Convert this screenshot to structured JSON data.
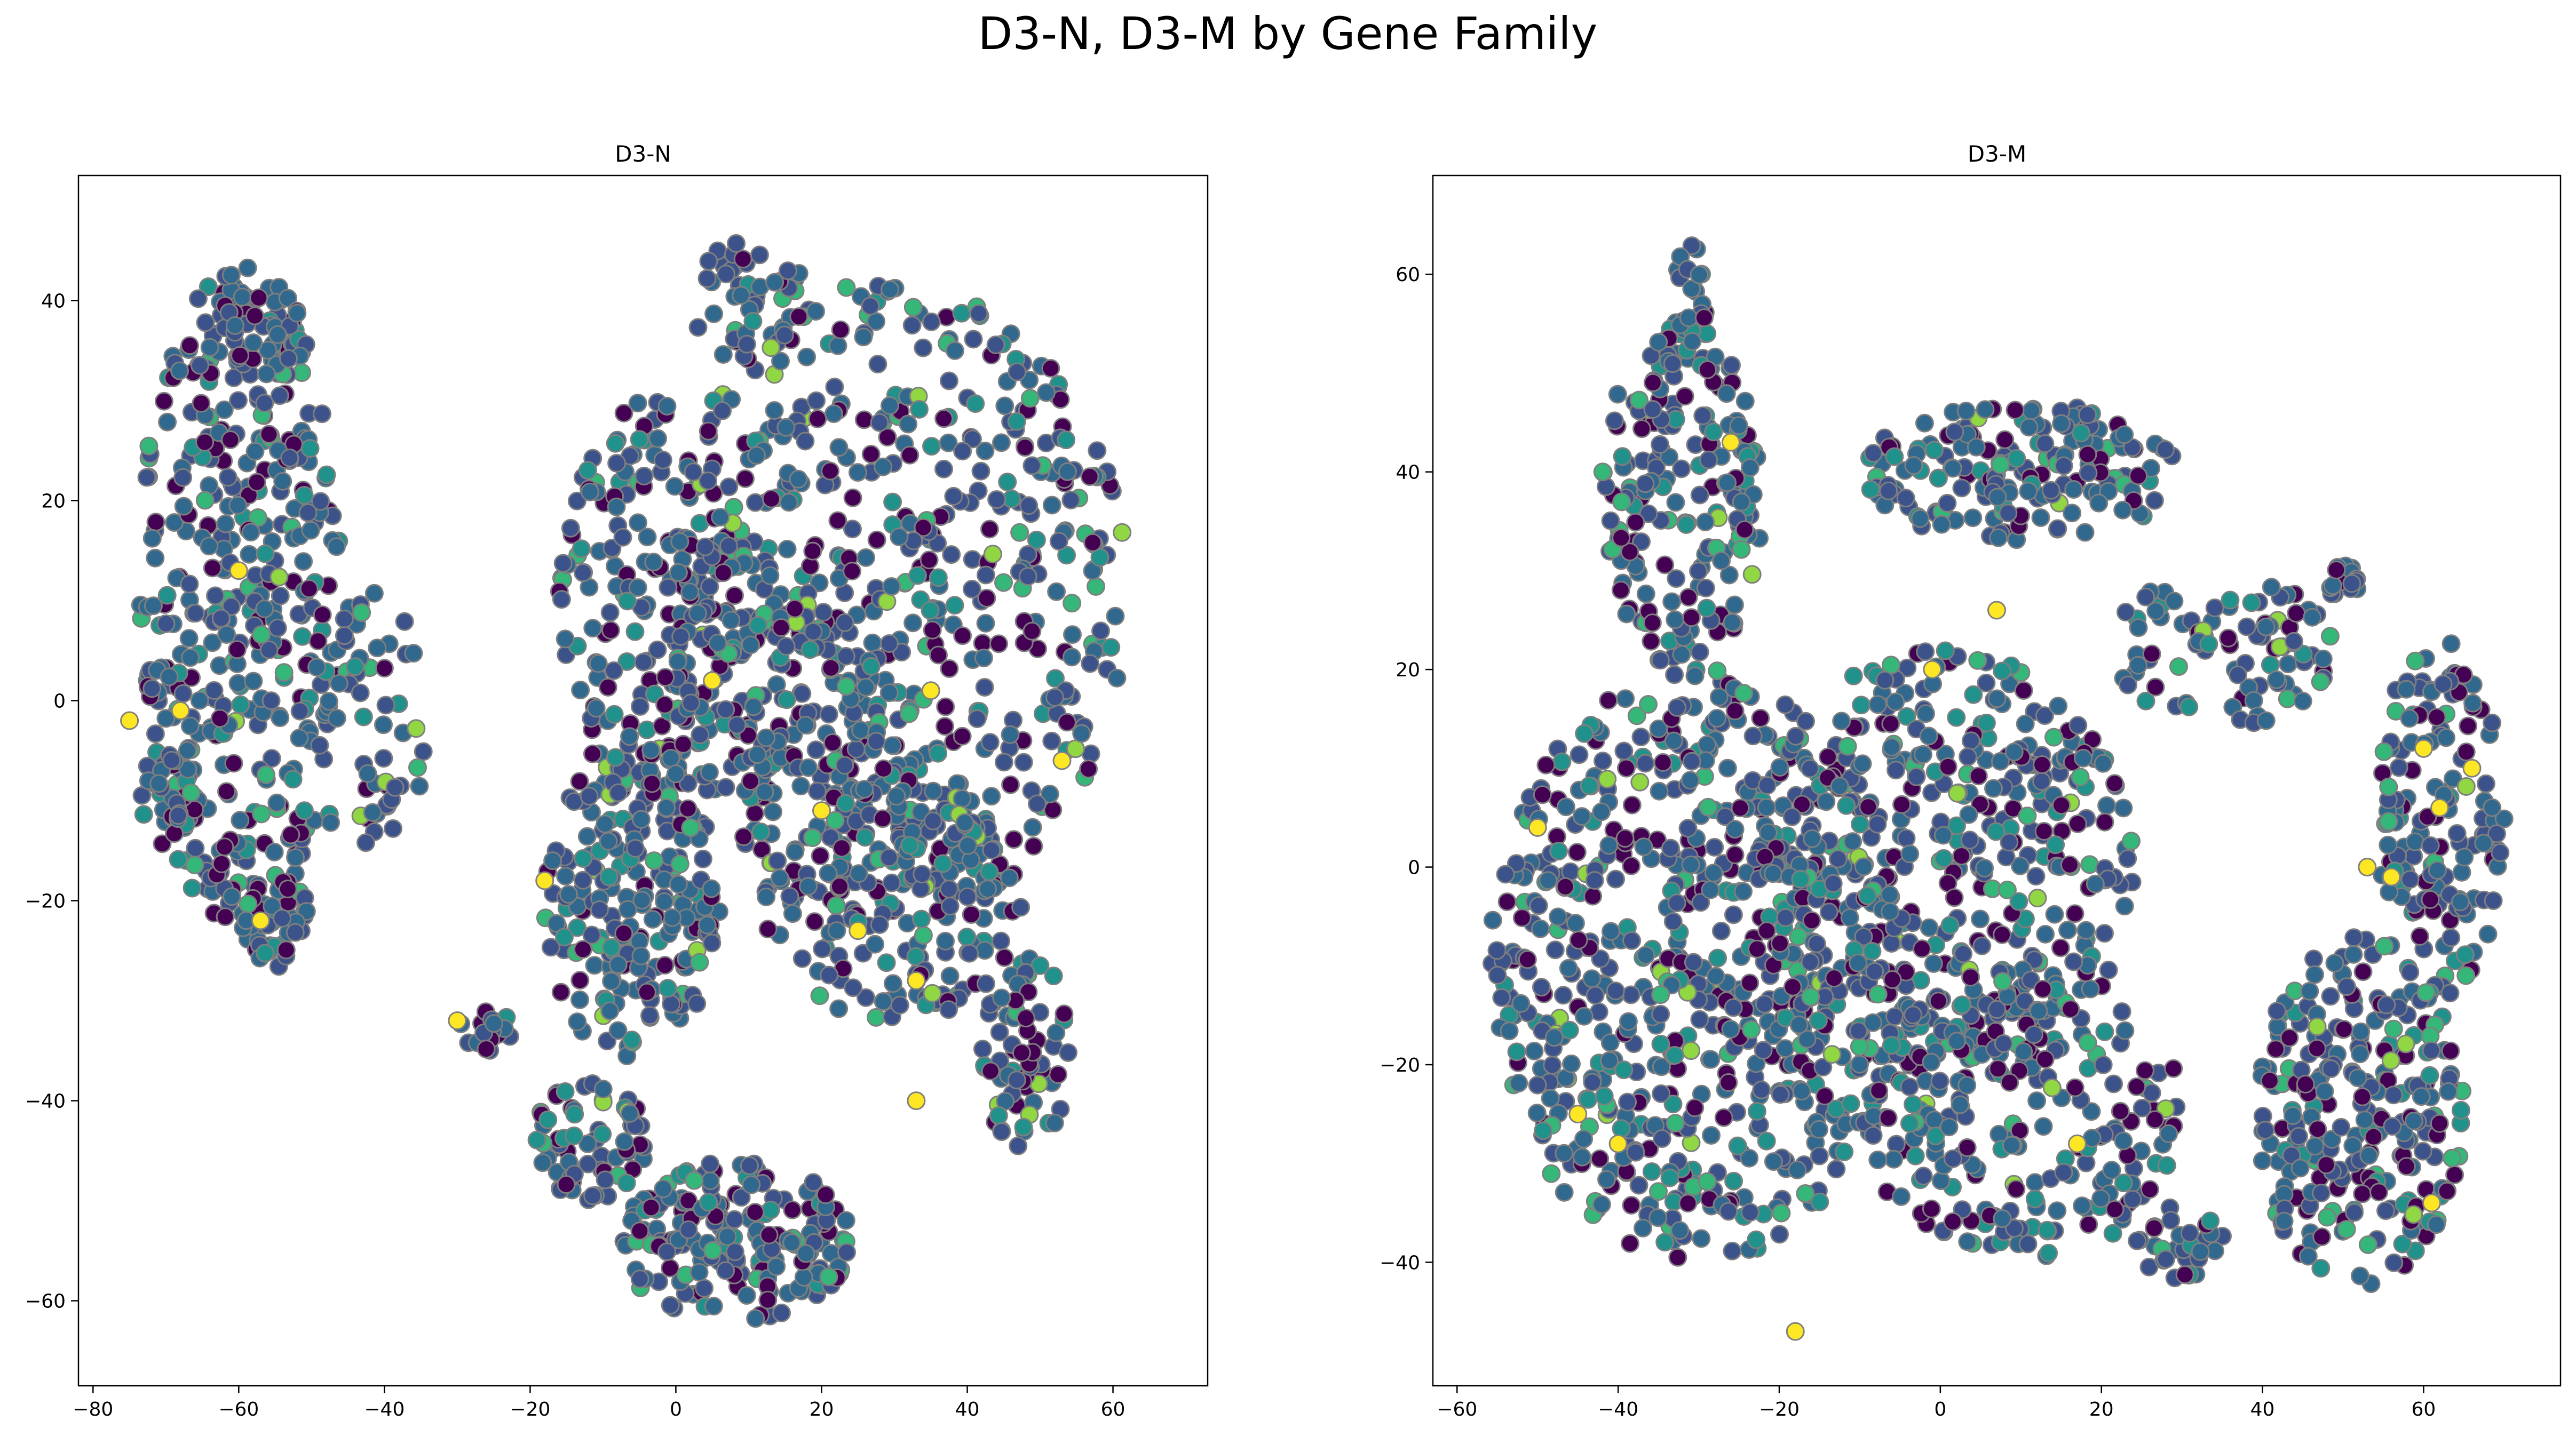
{
  "chart_data": {
    "suptitle": "D3-N, D3-M by Gene Family",
    "type": "scatter",
    "colormap": "viridis",
    "marker_edge_color": "#7f7f7f",
    "palette": [
      "#440154",
      "#3b528b",
      "#31688e",
      "#21918c",
      "#35b779",
      "#90d743",
      "#fde725"
    ],
    "panels": [
      {
        "title": "D3-N",
        "xlim": [
          -82,
          73
        ],
        "ylim": [
          -68.5,
          52.5
        ],
        "xticks": [
          -80,
          -60,
          -40,
          -20,
          0,
          20,
          40,
          60
        ],
        "xtick_labels": [
          "−80",
          "−60",
          "−40",
          "−20",
          "0",
          "20",
          "40",
          "60"
        ],
        "yticks": [
          -60,
          -40,
          -20,
          0,
          20,
          40
        ],
        "ytick_labels": [
          "−60",
          "−40",
          "−20",
          "0",
          "20",
          "40"
        ],
        "seed": 17,
        "clusters": [
          {
            "cx": -60,
            "cy": 10,
            "rx": 14,
            "ry": 33,
            "n": 430
          },
          {
            "cx": -56,
            "cy": 38,
            "rx": 6,
            "ry": 6,
            "n": 40
          },
          {
            "cx": -55,
            "cy": -22,
            "rx": 5,
            "ry": 5,
            "n": 45
          },
          {
            "cx": -70,
            "cy": -10,
            "rx": 4,
            "ry": 5,
            "n": 30
          },
          {
            "cx": -42,
            "cy": -2,
            "rx": 8,
            "ry": 14,
            "n": 60
          },
          {
            "cx": 30,
            "cy": 10,
            "rx": 32,
            "ry": 32,
            "n": 620
          },
          {
            "cx": 12,
            "cy": 0,
            "rx": 18,
            "ry": 10,
            "n": 130
          },
          {
            "cx": 10,
            "cy": 40,
            "rx": 8,
            "ry": 6,
            "n": 50
          },
          {
            "cx": -4,
            "cy": 10,
            "rx": 12,
            "ry": 20,
            "n": 160
          },
          {
            "cx": -6,
            "cy": -20,
            "rx": 12,
            "ry": 16,
            "n": 220
          },
          {
            "cx": 30,
            "cy": -20,
            "rx": 18,
            "ry": 12,
            "n": 180
          },
          {
            "cx": 48,
            "cy": -35,
            "rx": 6,
            "ry": 10,
            "n": 70
          },
          {
            "cx": 8,
            "cy": -54,
            "rx": 16,
            "ry": 8,
            "n": 200
          },
          {
            "cx": -12,
            "cy": -44,
            "rx": 8,
            "ry": 6,
            "n": 70
          },
          {
            "cx": -26,
            "cy": -33,
            "rx": 4,
            "ry": 2,
            "n": 20
          }
        ],
        "highlights": [
          [
            -75,
            -2
          ],
          [
            -68,
            -1
          ],
          [
            -57,
            -22
          ],
          [
            -60,
            13
          ],
          [
            -30,
            -32
          ],
          [
            -18,
            -18
          ],
          [
            5,
            2
          ],
          [
            25,
            -23
          ],
          [
            33,
            -28
          ],
          [
            33,
            -40
          ],
          [
            35,
            1
          ],
          [
            53,
            -6
          ],
          [
            20,
            -11
          ]
        ]
      },
      {
        "title": "D3-M",
        "xlim": [
          -63,
          77
        ],
        "ylim": [
          -52.5,
          70
        ],
        "xticks": [
          -60,
          -40,
          -20,
          0,
          20,
          40,
          60
        ],
        "xtick_labels": [
          "−60",
          "−40",
          "−20",
          "0",
          "20",
          "40",
          "60"
        ],
        "yticks": [
          -40,
          -20,
          0,
          20,
          40,
          60
        ],
        "ytick_labels": [
          "−40",
          "−20",
          "0",
          "20",
          "40",
          "60"
        ],
        "seed": 41,
        "clusters": [
          {
            "cx": -30,
            "cy": -10,
            "rx": 26,
            "ry": 30,
            "n": 700
          },
          {
            "cx": -32,
            "cy": 38,
            "rx": 10,
            "ry": 18,
            "n": 200
          },
          {
            "cx": -31,
            "cy": 58,
            "rx": 2,
            "ry": 5,
            "n": 20
          },
          {
            "cx": 10,
            "cy": 40,
            "rx": 20,
            "ry": 7,
            "n": 180
          },
          {
            "cx": 0,
            "cy": 0,
            "rx": 24,
            "ry": 22,
            "n": 430
          },
          {
            "cx": 10,
            "cy": -25,
            "rx": 20,
            "ry": 15,
            "n": 220
          },
          {
            "cx": 35,
            "cy": 22,
            "rx": 14,
            "ry": 8,
            "n": 90
          },
          {
            "cx": 50,
            "cy": 29,
            "rx": 2,
            "ry": 2,
            "n": 20
          },
          {
            "cx": 62,
            "cy": 5,
            "rx": 8,
            "ry": 18,
            "n": 150
          },
          {
            "cx": 52,
            "cy": -25,
            "rx": 13,
            "ry": 18,
            "n": 260
          },
          {
            "cx": 30,
            "cy": -38,
            "rx": 6,
            "ry": 4,
            "n": 30
          }
        ],
        "highlights": [
          [
            -26,
            43
          ],
          [
            -50,
            4
          ],
          [
            -45,
            -25
          ],
          [
            -40,
            -28
          ],
          [
            -18,
            -47
          ],
          [
            -1,
            20
          ],
          [
            7,
            26
          ],
          [
            17,
            -28
          ],
          [
            53,
            0
          ],
          [
            56,
            -1
          ],
          [
            60,
            12
          ],
          [
            62,
            6
          ],
          [
            66,
            10
          ],
          [
            61,
            -34
          ]
        ]
      }
    ]
  }
}
